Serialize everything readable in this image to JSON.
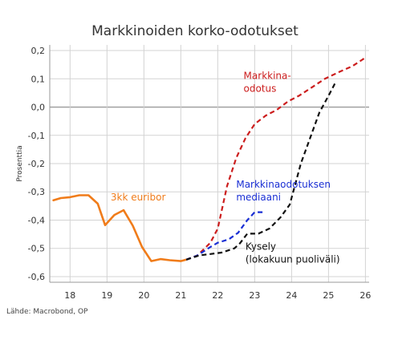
{
  "chart_data": {
    "type": "line",
    "title": "Markkinoiden korko-odotukset",
    "ylabel": "Prosenttia",
    "xlabel": "",
    "ylim": [
      -0.62,
      0.22
    ],
    "xlim": [
      17.45,
      26.1
    ],
    "grid": true,
    "yticks": [
      0.2,
      0.1,
      0.0,
      -0.1,
      -0.2,
      -0.3,
      -0.4,
      -0.5,
      -0.6
    ],
    "ytick_labels": [
      "0,2",
      "0,1",
      "0,0",
      "-0,1",
      "-0,2",
      "-0,3",
      "-0,4",
      "-0,5",
      "-0,6"
    ],
    "xticks": [
      18,
      19,
      20,
      21,
      22,
      23,
      24,
      25,
      26
    ],
    "xtick_labels": [
      "18",
      "19",
      "20",
      "21",
      "22",
      "23",
      "24",
      "25",
      "26"
    ],
    "series": [
      {
        "name": "3kk euribor",
        "color": "#f07c1a",
        "style": "solid",
        "points": [
          [
            17.55,
            -0.33
          ],
          [
            17.75,
            -0.322
          ],
          [
            18.0,
            -0.319
          ],
          [
            18.25,
            -0.312
          ],
          [
            18.5,
            -0.312
          ],
          [
            18.75,
            -0.342
          ],
          [
            18.95,
            -0.418
          ],
          [
            19.2,
            -0.382
          ],
          [
            19.45,
            -0.365
          ],
          [
            19.7,
            -0.42
          ],
          [
            19.95,
            -0.495
          ],
          [
            20.2,
            -0.545
          ],
          [
            20.45,
            -0.538
          ],
          [
            20.7,
            -0.542
          ],
          [
            21.0,
            -0.545
          ],
          [
            21.15,
            -0.54
          ]
        ]
      },
      {
        "name": "Markkina-odotus",
        "color": "#cc1e1e",
        "style": "dashed",
        "points": [
          [
            21.15,
            -0.54
          ],
          [
            21.45,
            -0.525
          ],
          [
            21.8,
            -0.48
          ],
          [
            22.0,
            -0.43
          ],
          [
            22.25,
            -0.28
          ],
          [
            22.5,
            -0.18
          ],
          [
            22.75,
            -0.11
          ],
          [
            23.0,
            -0.06
          ],
          [
            23.3,
            -0.03
          ],
          [
            23.6,
            -0.01
          ],
          [
            23.9,
            0.02
          ],
          [
            24.2,
            0.04
          ],
          [
            24.55,
            0.07
          ],
          [
            24.9,
            0.1
          ],
          [
            25.3,
            0.125
          ],
          [
            25.65,
            0.145
          ],
          [
            26.0,
            0.175
          ]
        ]
      },
      {
        "name": "Markkinaodotuksen mediaani",
        "color": "#1a2fd4",
        "style": "dashed",
        "points": [
          [
            21.15,
            -0.54
          ],
          [
            21.45,
            -0.525
          ],
          [
            21.8,
            -0.495
          ],
          [
            22.0,
            -0.48
          ],
          [
            22.3,
            -0.468
          ],
          [
            22.55,
            -0.445
          ],
          [
            22.8,
            -0.4
          ],
          [
            23.0,
            -0.372
          ],
          [
            23.25,
            -0.372
          ]
        ]
      },
      {
        "name": "Kysely (lokakuun puoliväli)",
        "color": "#111111",
        "style": "dashed",
        "points": [
          [
            21.15,
            -0.54
          ],
          [
            21.5,
            -0.525
          ],
          [
            21.8,
            -0.52
          ],
          [
            22.1,
            -0.515
          ],
          [
            22.45,
            -0.5
          ],
          [
            22.6,
            -0.482
          ],
          [
            22.8,
            -0.448
          ],
          [
            23.1,
            -0.448
          ],
          [
            23.4,
            -0.43
          ],
          [
            23.7,
            -0.39
          ],
          [
            23.95,
            -0.345
          ],
          [
            24.25,
            -0.2
          ],
          [
            24.5,
            -0.11
          ],
          [
            24.75,
            -0.02
          ],
          [
            25.0,
            0.04
          ],
          [
            25.2,
            0.09
          ]
        ]
      }
    ],
    "annotations": [
      {
        "lines": [
          "3kk euribor"
        ],
        "color": "#f07c1a",
        "x": 19.1,
        "y": -0.33,
        "anchor": "start"
      },
      {
        "lines": [
          "Markkina-",
          "odotus"
        ],
        "color": "#cc1e1e",
        "x": 22.7,
        "y": 0.1,
        "anchor": "start"
      },
      {
        "lines": [
          "Markkinaodotuksen",
          "mediaani"
        ],
        "color": "#1a2fd4",
        "x": 22.5,
        "y": -0.285,
        "anchor": "start"
      },
      {
        "lines": [
          "Kysely",
          "(lokakuun puoliväli)"
        ],
        "color": "#111111",
        "x": 22.75,
        "y": -0.505,
        "anchor": "start"
      }
    ]
  },
  "source": "Lähde: Macrobond, OP"
}
